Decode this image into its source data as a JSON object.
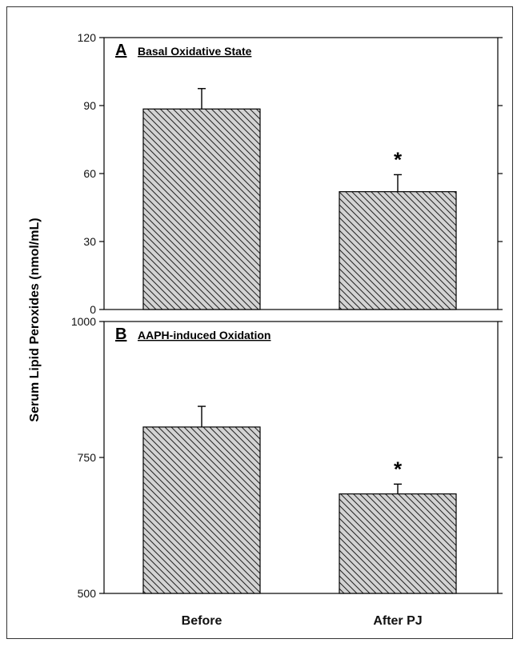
{
  "chart_data": [
    {
      "type": "bar",
      "panel_letter": "A",
      "title": "Basal Oxidative State",
      "categories": [
        "Before",
        "After PJ"
      ],
      "values": [
        88.5,
        52.0
      ],
      "errors": [
        9.0,
        7.5
      ],
      "significance": [
        "",
        "*"
      ],
      "ylim": [
        0,
        120
      ],
      "yticks": [
        0,
        30,
        60,
        90,
        120
      ],
      "bar_fill": "#d3d3d3",
      "bar_hatch": "diagonal"
    },
    {
      "type": "bar",
      "panel_letter": "B",
      "title": "AAPH-induced Oxidation",
      "categories": [
        "Before",
        "After PJ"
      ],
      "values": [
        806,
        683
      ],
      "errors": [
        38,
        18
      ],
      "significance": [
        "",
        "*"
      ],
      "ylim": [
        500,
        1000
      ],
      "yticks": [
        500,
        750,
        1000
      ],
      "bar_fill": "#d3d3d3",
      "bar_hatch": "diagonal"
    }
  ],
  "shared": {
    "ylabel": "Serum Lipid Peroxides (nmol/mL)",
    "categories": [
      "Before",
      "After PJ"
    ]
  }
}
